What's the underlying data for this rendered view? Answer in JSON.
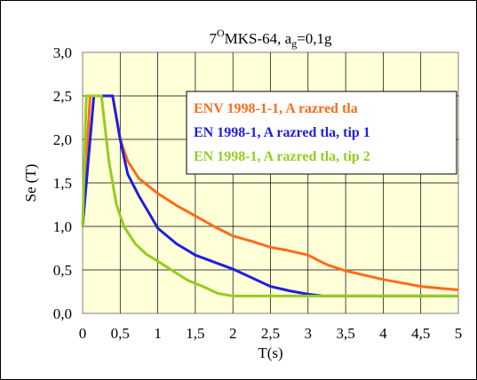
{
  "chart_data": {
    "type": "line",
    "title_main": "7",
    "title_sup": "O",
    "title_rest": "MKS-64, a",
    "title_sub": "g",
    "title_end": "=0,1g",
    "xlabel": "T(s)",
    "ylabel": "Se (T)",
    "xlim": [
      0,
      5
    ],
    "ylim": [
      0,
      3
    ],
    "x_ticks": [
      "0",
      "0,5",
      "1",
      "1,5",
      "2",
      "2,5",
      "3",
      "3,5",
      "4",
      "4,5",
      "5"
    ],
    "y_ticks": [
      "0,0",
      "0,5",
      "1,0",
      "1,5",
      "2,0",
      "2,5",
      "3,0"
    ],
    "grid": true,
    "legend_position": "top-right",
    "series": [
      {
        "name": "ENV 1998-1-1, A razred tla",
        "color": "#ff6a1a",
        "x": [
          0,
          0.1,
          0.4,
          0.5,
          0.6,
          0.75,
          1.0,
          1.25,
          1.5,
          1.75,
          2.0,
          2.25,
          2.5,
          2.75,
          3.0,
          3.25,
          3.5,
          3.75,
          4.0,
          4.25,
          4.5,
          4.75,
          5.0
        ],
        "y": [
          1.0,
          2.5,
          2.5,
          2.0,
          1.75,
          1.55,
          1.38,
          1.24,
          1.12,
          1.0,
          0.89,
          0.83,
          0.76,
          0.72,
          0.67,
          0.56,
          0.49,
          0.44,
          0.39,
          0.35,
          0.31,
          0.29,
          0.27
        ]
      },
      {
        "name": "EN 1998-1, A razred tla, tip 1",
        "color": "#1e1ee0",
        "x": [
          0,
          0.15,
          0.4,
          0.5,
          0.6,
          0.75,
          0.9,
          1.0,
          1.25,
          1.5,
          1.75,
          2.0,
          2.25,
          2.5,
          2.75,
          3.0,
          3.2,
          3.5,
          4.0,
          4.5,
          5.0
        ],
        "y": [
          1.0,
          2.5,
          2.5,
          2.0,
          1.6,
          1.35,
          1.13,
          0.98,
          0.8,
          0.67,
          0.59,
          0.51,
          0.41,
          0.31,
          0.26,
          0.22,
          0.2,
          0.2,
          0.2,
          0.2,
          0.2
        ]
      },
      {
        "name": "EN 1998-1, A razred tla, tip 2",
        "color": "#96cc1e",
        "x": [
          0,
          0.05,
          0.25,
          0.35,
          0.45,
          0.55,
          0.7,
          0.85,
          1.0,
          1.2,
          1.4,
          1.6,
          1.8,
          2.0,
          2.5,
          3.0,
          3.5,
          4.0,
          4.5,
          5.0
        ],
        "y": [
          1.0,
          2.5,
          2.5,
          1.75,
          1.25,
          1.0,
          0.8,
          0.68,
          0.6,
          0.49,
          0.38,
          0.31,
          0.23,
          0.2,
          0.2,
          0.2,
          0.2,
          0.2,
          0.2,
          0.2
        ]
      }
    ]
  }
}
